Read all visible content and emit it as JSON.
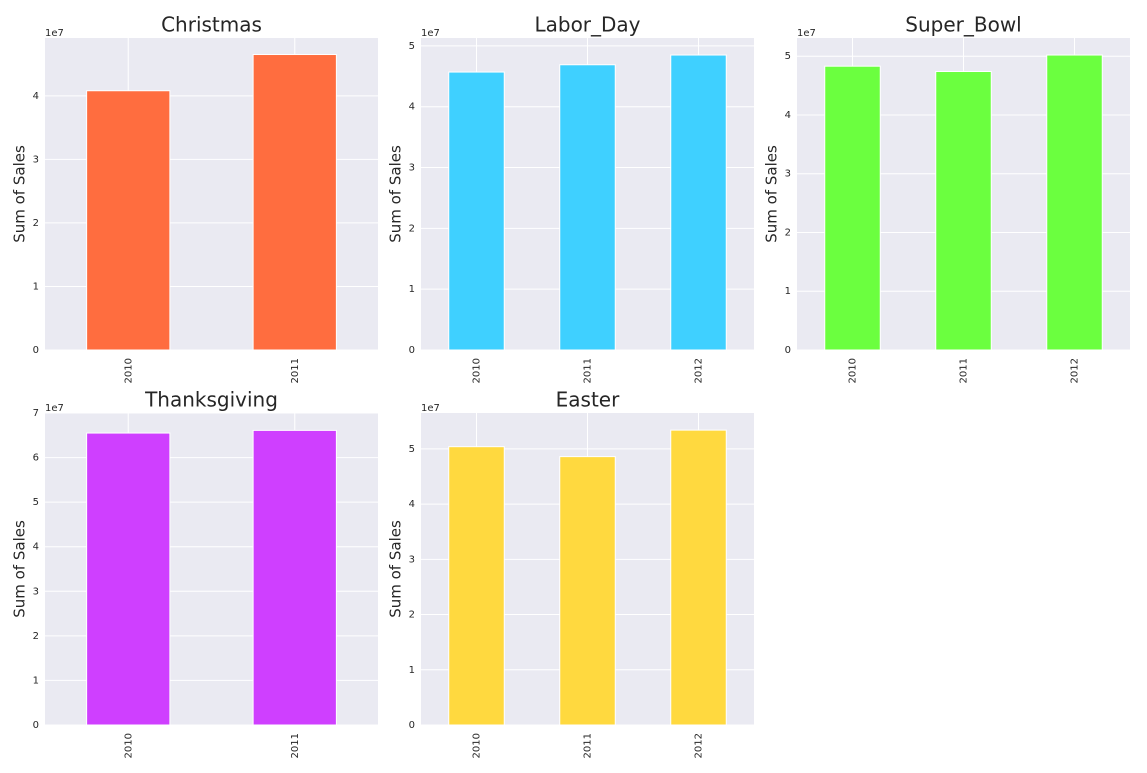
{
  "chart_data": [
    {
      "type": "bar",
      "title": "Christmas",
      "ylabel": "Sum of Sales",
      "offset_text": "1e7",
      "categories": [
        "2010",
        "2011"
      ],
      "values": [
        4.08,
        4.65
      ],
      "color": "#ff6d3f",
      "ylim": [
        0,
        4.91
      ],
      "yticks": [
        0,
        1,
        2,
        3,
        4
      ],
      "grid": true
    },
    {
      "type": "bar",
      "title": "Labor_Day",
      "ylabel": "Sum of Sales",
      "offset_text": "1e7",
      "categories": [
        "2010",
        "2011",
        "2012"
      ],
      "values": [
        4.57,
        4.69,
        4.85
      ],
      "color": "#3fd0ff",
      "ylim": [
        0,
        5.13
      ],
      "yticks": [
        0,
        1,
        2,
        3,
        4,
        5
      ],
      "grid": true
    },
    {
      "type": "bar",
      "title": "Super_Bowl",
      "ylabel": "Sum of Sales",
      "offset_text": "1e7",
      "categories": [
        "2010",
        "2011",
        "2012"
      ],
      "values": [
        4.83,
        4.74,
        5.02
      ],
      "color": "#6bff3f",
      "ylim": [
        0,
        5.31
      ],
      "yticks": [
        0,
        1,
        2,
        3,
        4,
        5
      ],
      "grid": true
    },
    {
      "type": "bar",
      "title": "Thanksgiving",
      "ylabel": "Sum of Sales",
      "offset_text": "1e7",
      "categories": [
        "2010",
        "2011"
      ],
      "values": [
        6.55,
        6.61
      ],
      "color": "#cf3fff",
      "ylim": [
        0,
        7
      ],
      "yticks": [
        0,
        1,
        2,
        3,
        4,
        5,
        6,
        7
      ],
      "grid": true
    },
    {
      "type": "bar",
      "title": "Easter",
      "ylabel": "Sum of Sales",
      "offset_text": "1e7",
      "categories": [
        "2010",
        "2011",
        "2012"
      ],
      "values": [
        5.04,
        4.86,
        5.34
      ],
      "color": "#ffd93f",
      "ylim": [
        0,
        5.65
      ],
      "yticks": [
        0,
        1,
        2,
        3,
        4,
        5
      ],
      "grid": true
    }
  ]
}
